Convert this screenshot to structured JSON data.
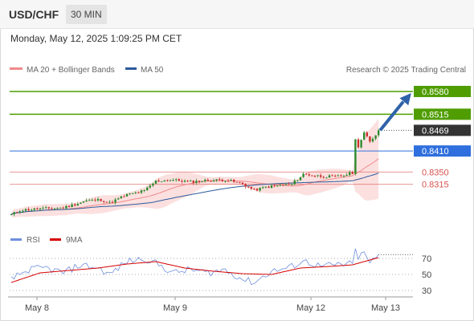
{
  "header": {
    "symbol": "USD/CHF",
    "timeframe": "30 MIN",
    "datetime": "Monday, May 12, 2025 1:09:25 PM CET"
  },
  "legend": {
    "ma20": "MA 20 + Bollinger Bands",
    "ma50": "MA 50",
    "credit": "Research © 2025 Trading Central",
    "rsi": "RSI",
    "rsi_ma": "9MA"
  },
  "colors": {
    "resistance": "#4f9d00",
    "support": "#d9534f",
    "pivot": "#2f6fde",
    "current": "#333333",
    "arrow": "#2f62a8",
    "ma20": "#f08a8a",
    "ma50": "#2d5a9a",
    "bands": "#fbdada",
    "candle_up": "#2c8a2c",
    "candle_down": "#c9302c",
    "rsi": "#6f8fdc",
    "rsi_ma": "#d60000"
  },
  "chart_data": {
    "type": "candlestick",
    "ylim": [
      0.8195,
      0.8612
    ],
    "x_labels": [
      "May 8",
      "May 9",
      "May 12",
      "May 13"
    ],
    "levels": [
      {
        "label": "0.8580",
        "value": 0.858,
        "kind": "resistance"
      },
      {
        "label": "0.8515",
        "value": 0.8515,
        "kind": "resistance"
      },
      {
        "label": "0.8469",
        "value": 0.8469,
        "kind": "current"
      },
      {
        "label": "0.8410",
        "value": 0.841,
        "kind": "pivot"
      },
      {
        "label": "0.8350",
        "value": 0.835,
        "kind": "support"
      },
      {
        "label": "0.8315",
        "value": 0.8315,
        "kind": "support"
      }
    ],
    "price": {
      "start": 0.8228,
      "knots": [
        [
          0,
          0.8228
        ],
        [
          3,
          0.8241
        ],
        [
          10,
          0.8245
        ],
        [
          18,
          0.8248
        ],
        [
          26,
          0.8268
        ],
        [
          31,
          0.8271
        ],
        [
          34,
          0.8262
        ],
        [
          40,
          0.8285
        ],
        [
          46,
          0.8296
        ],
        [
          50,
          0.8324
        ],
        [
          55,
          0.8328
        ],
        [
          62,
          0.8322
        ],
        [
          68,
          0.8326
        ],
        [
          74,
          0.8328
        ],
        [
          80,
          0.8316
        ],
        [
          84,
          0.8298
        ],
        [
          88,
          0.8307
        ],
        [
          94,
          0.8313
        ],
        [
          97,
          0.8315
        ],
        [
          101,
          0.8344
        ],
        [
          107,
          0.8338
        ],
        [
          112,
          0.8336
        ],
        [
          115,
          0.8341
        ],
        [
          118,
          0.8348
        ],
        [
          119,
          0.8441
        ],
        [
          120,
          0.8424
        ],
        [
          122,
          0.8462
        ],
        [
          124,
          0.8435
        ],
        [
          127,
          0.8469
        ]
      ],
      "arrow_target": 0.8574
    },
    "rsi": {
      "ylim": [
        20,
        80
      ],
      "ticks": [
        70,
        50,
        30
      ],
      "rsi_knots": [
        [
          0,
          44
        ],
        [
          6,
          56
        ],
        [
          12,
          58
        ],
        [
          18,
          52
        ],
        [
          24,
          62
        ],
        [
          30,
          58
        ],
        [
          34,
          50
        ],
        [
          40,
          66
        ],
        [
          46,
          70
        ],
        [
          50,
          64
        ],
        [
          56,
          52
        ],
        [
          62,
          56
        ],
        [
          68,
          52
        ],
        [
          74,
          56
        ],
        [
          80,
          44
        ],
        [
          84,
          40
        ],
        [
          90,
          54
        ],
        [
          96,
          58
        ],
        [
          101,
          67
        ],
        [
          107,
          60
        ],
        [
          113,
          62
        ],
        [
          118,
          63
        ],
        [
          119,
          79
        ],
        [
          120,
          72
        ],
        [
          122,
          76
        ],
        [
          124,
          65
        ],
        [
          127,
          72
        ]
      ],
      "ma_knots": [
        [
          0,
          40
        ],
        [
          10,
          52
        ],
        [
          20,
          55
        ],
        [
          30,
          58
        ],
        [
          40,
          63
        ],
        [
          50,
          66
        ],
        [
          60,
          58
        ],
        [
          70,
          54
        ],
        [
          80,
          51
        ],
        [
          90,
          50
        ],
        [
          100,
          58
        ],
        [
          110,
          60
        ],
        [
          118,
          62
        ],
        [
          122,
          66
        ],
        [
          127,
          71
        ]
      ]
    }
  }
}
